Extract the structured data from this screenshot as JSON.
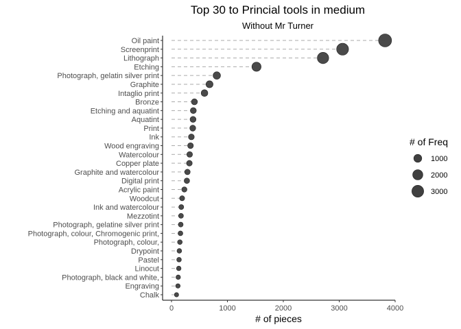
{
  "chart_data": {
    "type": "scatter",
    "subtype": "lollipop-dot",
    "title": "Top 30 to Princial  tools in medium",
    "subtitle": "Without Mr Turner",
    "xlabel": "# of pieces",
    "ylabel": "",
    "xlim": [
      -150,
      4000
    ],
    "x_ticks": [
      0,
      1000,
      2000,
      3000,
      4000
    ],
    "grid": false,
    "categories": [
      "Oil paint",
      "Screenprint",
      "Lithograph",
      "Etching",
      "Photograph, gelatin silver print",
      "Graphite",
      "Intaglio print",
      "Bronze",
      "Etching and aquatint",
      "Aquatint",
      "Print",
      "Ink",
      "Wood engraving",
      "Watercolour",
      "Copper plate",
      "Graphite and watercolour",
      "Digital print",
      "Acrylic paint",
      "Woodcut",
      "Ink and watercolour",
      "Mezzotint",
      "Photograph, gelatine silver print",
      "Photograph, colour, Chromogenic print,",
      "Photograph, colour,",
      "Drypoint",
      "Pastel",
      "Linocut",
      "Photograph, black and white,",
      "Engraving",
      "Chalk"
    ],
    "values": [
      3820,
      3060,
      2710,
      1520,
      810,
      680,
      590,
      410,
      390,
      385,
      380,
      355,
      340,
      325,
      320,
      285,
      275,
      230,
      190,
      175,
      170,
      165,
      160,
      150,
      140,
      135,
      130,
      120,
      115,
      90
    ],
    "size_legend": {
      "title": "# of Freq",
      "values": [
        1000,
        2000,
        3000
      ],
      "labels": [
        "1000",
        "2000",
        "3000"
      ],
      "position": "right"
    },
    "colors": {
      "point": "#404040",
      "segment": "#aaaaaa",
      "axis": "#000000"
    }
  }
}
